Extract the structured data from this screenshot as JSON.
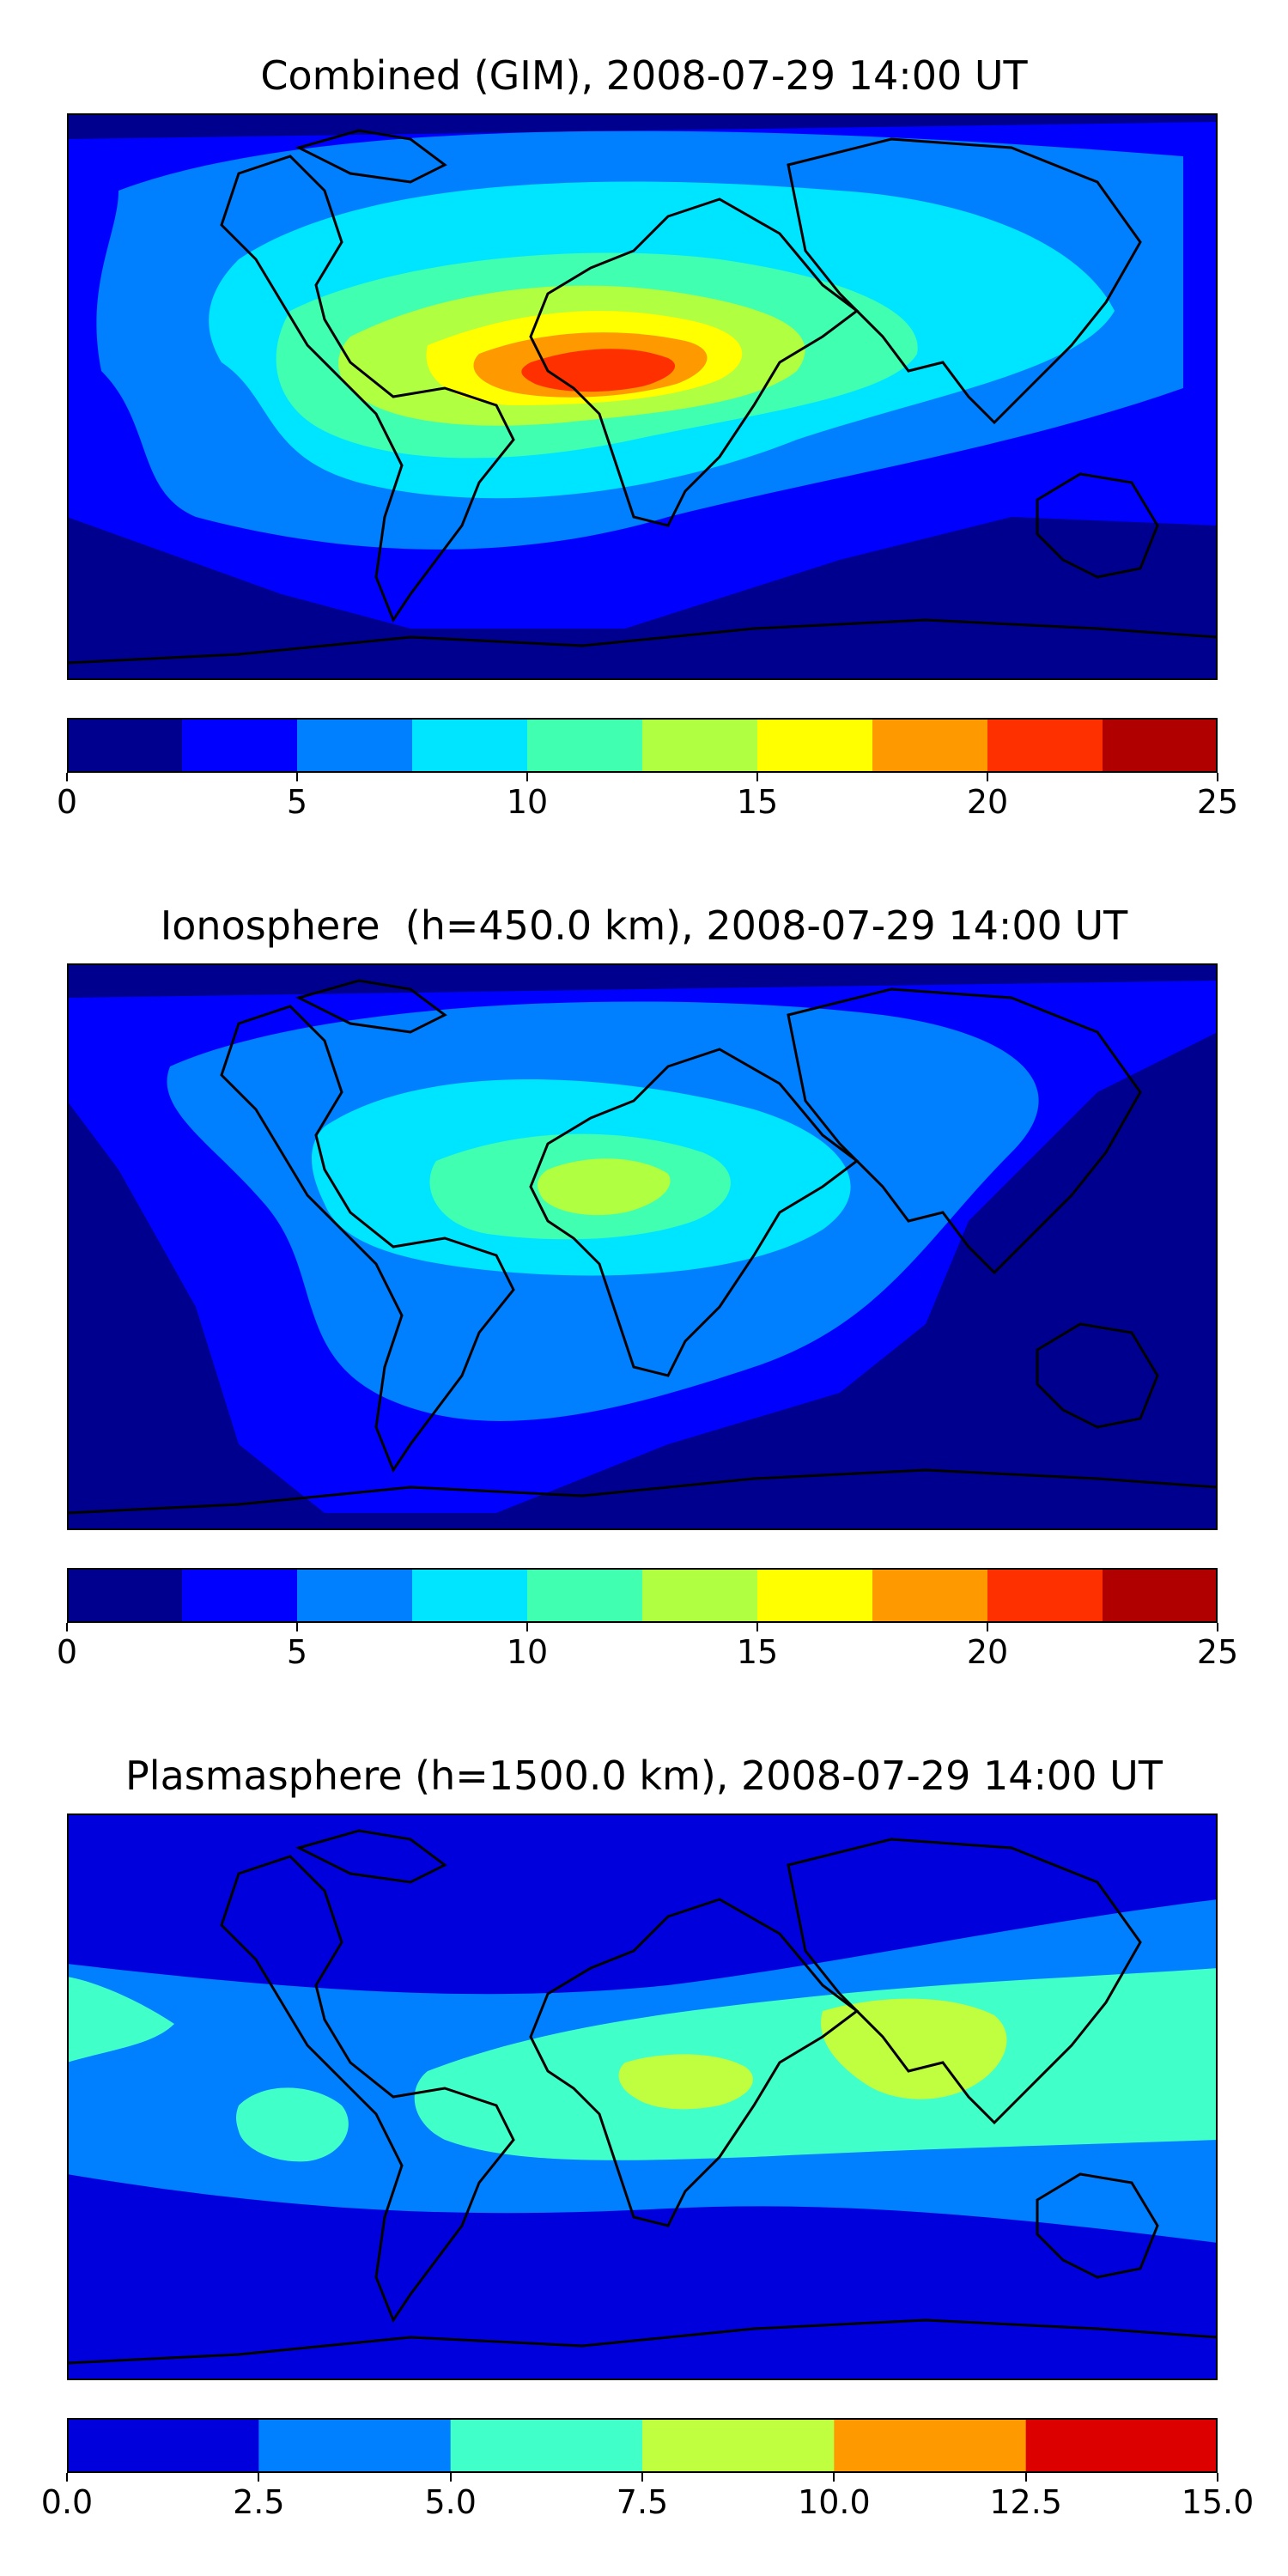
{
  "panels": [
    {
      "title": "Combined (GIM), 2008-07-29 14:00 UT",
      "colorbar": {
        "ticks": [
          "0",
          "5",
          "10",
          "15",
          "20",
          "25"
        ],
        "range": [
          0,
          25
        ],
        "colors": [
          "#00008f",
          "#0000ff",
          "#0080ff",
          "#00e5ff",
          "#40ffb0",
          "#b0ff40",
          "#ffff00",
          "#ff9900",
          "#ff3000",
          "#b00000"
        ]
      }
    },
    {
      "title": "Ionosphere  (h=450.0 km), 2008-07-29 14:00 UT",
      "colorbar": {
        "ticks": [
          "0",
          "5",
          "10",
          "15",
          "20",
          "25"
        ],
        "range": [
          0,
          25
        ],
        "colors": [
          "#00008f",
          "#0000ff",
          "#0080ff",
          "#00e5ff",
          "#40ffb0",
          "#b0ff40",
          "#ffff00",
          "#ff9900",
          "#ff3000",
          "#b00000"
        ]
      }
    },
    {
      "title": "Plasmasphere (h=1500.0 km), 2008-07-29 14:00 UT",
      "colorbar": {
        "ticks": [
          "0.0",
          "2.5",
          "5.0",
          "7.5",
          "10.0",
          "12.5",
          "15.0"
        ],
        "range": [
          0,
          15
        ],
        "colors": [
          "#0000dd",
          "#0080ff",
          "#40ffc8",
          "#c0ff40",
          "#ff9900",
          "#dd0000"
        ]
      }
    }
  ]
}
